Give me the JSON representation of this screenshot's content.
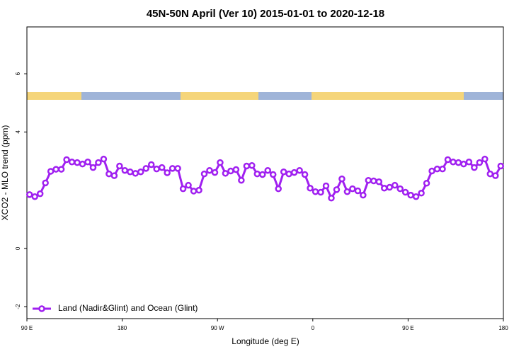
{
  "chart_data": {
    "type": "line",
    "title": "45N-50N April (Ver 10)   2015-01-01 to 2020-12-18",
    "x_label": "Longitude (deg E)",
    "y_label": "XCO2 - MLO trend (ppm)",
    "xlim": [
      90,
      540
    ],
    "ylim": [
      -2.41,
      7.61
    ],
    "xticks": [
      {
        "value": 90,
        "label": "90 E"
      },
      {
        "value": 180,
        "label": "180"
      },
      {
        "value": 270,
        "label": "90 W"
      },
      {
        "value": 360,
        "label": "0"
      },
      {
        "value": 450,
        "label": "90 E"
      },
      {
        "value": 540,
        "label": "180"
      }
    ],
    "yticks": [
      -2,
      0,
      4,
      6
    ],
    "legend": "bottom-left",
    "x": [
      92.5,
      97.5,
      102.5,
      107.5,
      112.5,
      117.5,
      122.5,
      127.5,
      132.5,
      137.5,
      142.5,
      147.5,
      152.5,
      157.5,
      162.5,
      167.5,
      172.5,
      177.5,
      182.5,
      187.5,
      192.5,
      197.5,
      202.5,
      207.5,
      212.5,
      217.5,
      222.5,
      227.5,
      232.5,
      237.5,
      242.5,
      247.5,
      252.5,
      257.5,
      262.5,
      267.5,
      272.5,
      277.5,
      282.5,
      287.5,
      292.5,
      297.5,
      302.5,
      307.5,
      312.5,
      317.5,
      322.5,
      327.5,
      332.5,
      337.5,
      342.5,
      347.5,
      352.5,
      357.5,
      362.5,
      367.5,
      372.5,
      377.5,
      382.5,
      387.5,
      392.5,
      397.5,
      402.5,
      407.5,
      412.5,
      417.5,
      422.5,
      427.5,
      432.5,
      437.5,
      442.5,
      447.5,
      452.5,
      457.5,
      462.5,
      467.5,
      472.5,
      477.5,
      482.5,
      487.5,
      492.5,
      497.5,
      502.5,
      507.5,
      512.5,
      517.5,
      522.5,
      527.5,
      532.5,
      537.5
    ],
    "series": [
      {
        "name": "Land (Nadir&Glint) and Ocean (Glint)",
        "color": "#a020f0",
        "values": [
          1.85,
          1.78,
          1.88,
          2.25,
          2.65,
          2.72,
          2.72,
          3.05,
          2.97,
          2.95,
          2.9,
          2.97,
          2.78,
          2.95,
          3.07,
          2.56,
          2.5,
          2.83,
          2.68,
          2.63,
          2.58,
          2.63,
          2.75,
          2.88,
          2.73,
          2.78,
          2.6,
          2.75,
          2.75,
          2.05,
          2.17,
          1.97,
          2.0,
          2.56,
          2.68,
          2.61,
          2.95,
          2.58,
          2.66,
          2.71,
          2.34,
          2.83,
          2.85,
          2.56,
          2.54,
          2.68,
          2.54,
          2.05,
          2.63,
          2.56,
          2.61,
          2.68,
          2.54,
          2.07,
          1.95,
          1.93,
          2.15,
          1.73,
          2.02,
          2.39,
          1.95,
          2.05,
          1.98,
          1.83,
          2.34,
          2.32,
          2.29,
          2.07,
          2.1,
          2.17,
          2.05,
          1.93,
          1.83,
          1.78,
          1.9,
          2.24,
          2.66,
          2.73,
          2.73,
          3.05,
          2.97,
          2.95,
          2.9,
          2.97,
          2.78,
          2.95,
          3.07,
          2.56,
          2.5,
          2.83
        ]
      }
    ]
  }
}
